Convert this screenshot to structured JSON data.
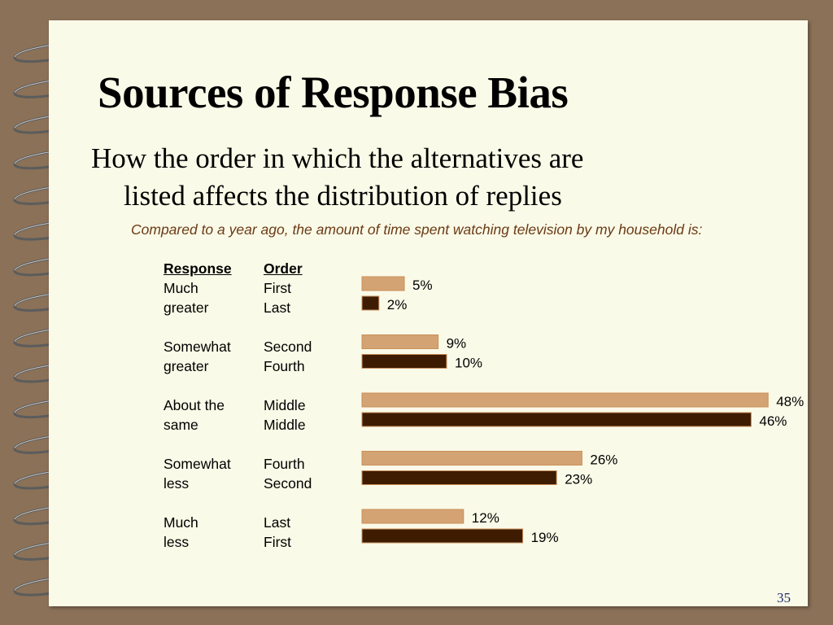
{
  "slide": {
    "title": "Sources of Response Bias",
    "subtitle_line1": "How the order in which the alternatives are",
    "subtitle_line2": "listed affects the distribution of replies",
    "question": "Compared to a year ago, the amount of time spent watching television by my household is:",
    "page_number": "35"
  },
  "colors": {
    "bar_first_series": "#d4a373",
    "bar_second_series": "#3d1c02",
    "question_text": "#6b3a14"
  },
  "table": {
    "headers": [
      "Response",
      "Order"
    ],
    "rows": [
      {
        "response": [
          "Much",
          "greater"
        ],
        "order": [
          "First",
          "Last"
        ]
      },
      {
        "response": [
          "Somewhat",
          "greater"
        ],
        "order": [
          "Second",
          "Fourth"
        ]
      },
      {
        "response": [
          "About the",
          "same"
        ],
        "order": [
          "Middle",
          "Middle"
        ]
      },
      {
        "response": [
          "Somewhat",
          "less"
        ],
        "order": [
          "Fourth",
          "Second"
        ]
      },
      {
        "response": [
          "Much",
          "less"
        ],
        "order": [
          "Last",
          "First"
        ]
      }
    ]
  },
  "chart_data": {
    "type": "bar",
    "orientation": "horizontal",
    "categories": [
      "Much greater",
      "Somewhat greater",
      "About the same",
      "Somewhat less",
      "Much less"
    ],
    "series": [
      {
        "values": [
          5,
          9,
          48,
          26,
          12
        ],
        "labels": [
          "5%",
          "9%",
          "48%",
          "26%",
          "12%"
        ]
      },
      {
        "values": [
          2,
          10,
          46,
          23,
          19
        ],
        "labels": [
          "2%",
          "10%",
          "46%",
          "23%",
          "19%"
        ]
      }
    ]
  }
}
